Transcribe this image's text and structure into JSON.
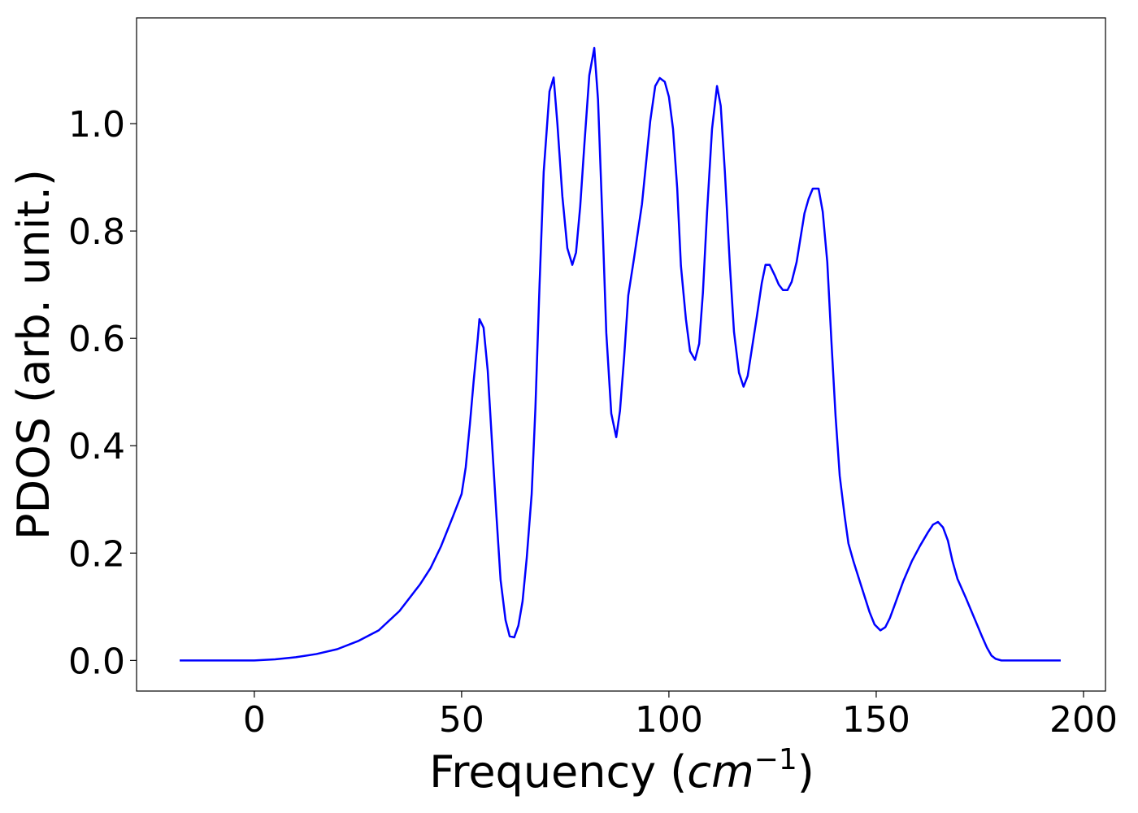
{
  "chart_data": {
    "type": "line",
    "xlabel_parts": [
      "Frequency (",
      "cm",
      "−1",
      ")"
    ],
    "ylabel": "PDOS (arb. unit.)",
    "color": "#0000ff",
    "x": [
      -18,
      0,
      5,
      10,
      15,
      20,
      25,
      30,
      35,
      40,
      42.5,
      45,
      48,
      50,
      51.0,
      52.0,
      52.9,
      53.9,
      54.3,
      55.3,
      56.3,
      57.3,
      58.4,
      59.4,
      60.6,
      61.6,
      62.7,
      63.7,
      64.7,
      65.7,
      66.9,
      67.8,
      68.8,
      69.8,
      71.2,
      72.2,
      73.1,
      74.3,
      75.5,
      76.7,
      77.6,
      78.6,
      79.6,
      80.8,
      82.0,
      82.9,
      83.9,
      84.9,
      86.1,
      87.3,
      88.2,
      89.2,
      90.2,
      91.6,
      93.5,
      95.5,
      96.7,
      97.8,
      99.0,
      100.0,
      101.0,
      102.0,
      102.9,
      104.1,
      105.1,
      106.3,
      107.3,
      108.2,
      109.2,
      110.4,
      111.6,
      112.5,
      113.5,
      114.7,
      115.7,
      116.9,
      118.0,
      119.0,
      120.0,
      121.2,
      122.4,
      123.3,
      124.3,
      125.5,
      126.5,
      127.5,
      128.6,
      129.6,
      130.8,
      131.8,
      132.7,
      133.7,
      134.7,
      136.1,
      137.1,
      138.2,
      139.2,
      140.2,
      141.2,
      142.4,
      143.3,
      144.5,
      146.5,
      148.4,
      149.6,
      151.0,
      152.2,
      153.3,
      154.3,
      156.5,
      158.6,
      160.6,
      162.5,
      163.7,
      164.9,
      166.1,
      167.3,
      168.4,
      169.6,
      171.6,
      173.5,
      175.5,
      176.7,
      177.8,
      178.8,
      180.2,
      194.5
    ],
    "values": [
      0,
      0,
      0.002,
      0.006,
      0.012,
      0.021,
      0.036,
      0.056,
      0.092,
      0.142,
      0.172,
      0.212,
      0.27,
      0.31,
      0.36,
      0.44,
      0.52,
      0.6,
      0.636,
      0.62,
      0.54,
      0.41,
      0.27,
      0.15,
      0.075,
      0.045,
      0.043,
      0.065,
      0.11,
      0.19,
      0.31,
      0.47,
      0.7,
      0.91,
      1.06,
      1.086,
      1.0,
      0.865,
      0.768,
      0.737,
      0.76,
      0.845,
      0.96,
      1.09,
      1.141,
      1.045,
      0.835,
      0.61,
      0.46,
      0.416,
      0.465,
      0.565,
      0.68,
      0.75,
      0.85,
      1.005,
      1.07,
      1.085,
      1.078,
      1.05,
      0.99,
      0.88,
      0.735,
      0.636,
      0.576,
      0.56,
      0.59,
      0.685,
      0.835,
      0.99,
      1.07,
      1.033,
      0.91,
      0.737,
      0.612,
      0.536,
      0.51,
      0.53,
      0.58,
      0.64,
      0.703,
      0.737,
      0.737,
      0.718,
      0.7,
      0.69,
      0.69,
      0.705,
      0.742,
      0.79,
      0.833,
      0.86,
      0.879,
      0.879,
      0.836,
      0.742,
      0.594,
      0.455,
      0.344,
      0.268,
      0.218,
      0.185,
      0.136,
      0.09,
      0.067,
      0.056,
      0.062,
      0.079,
      0.1,
      0.147,
      0.185,
      0.214,
      0.239,
      0.253,
      0.258,
      0.248,
      0.223,
      0.185,
      0.152,
      0.117,
      0.082,
      0.045,
      0.024,
      0.009,
      0.003,
      0,
      0
    ],
    "xlim": [
      -28.4,
      205.3
    ],
    "ylim": [
      -0.057,
      1.197
    ],
    "xticks": [
      0,
      50,
      100,
      150,
      200
    ],
    "yticks": [
      {
        "value": 0,
        "label": "0.0"
      },
      0.2,
      0.4,
      0.6,
      0.8,
      {
        "value": 1,
        "label": "1.0"
      }
    ]
  }
}
